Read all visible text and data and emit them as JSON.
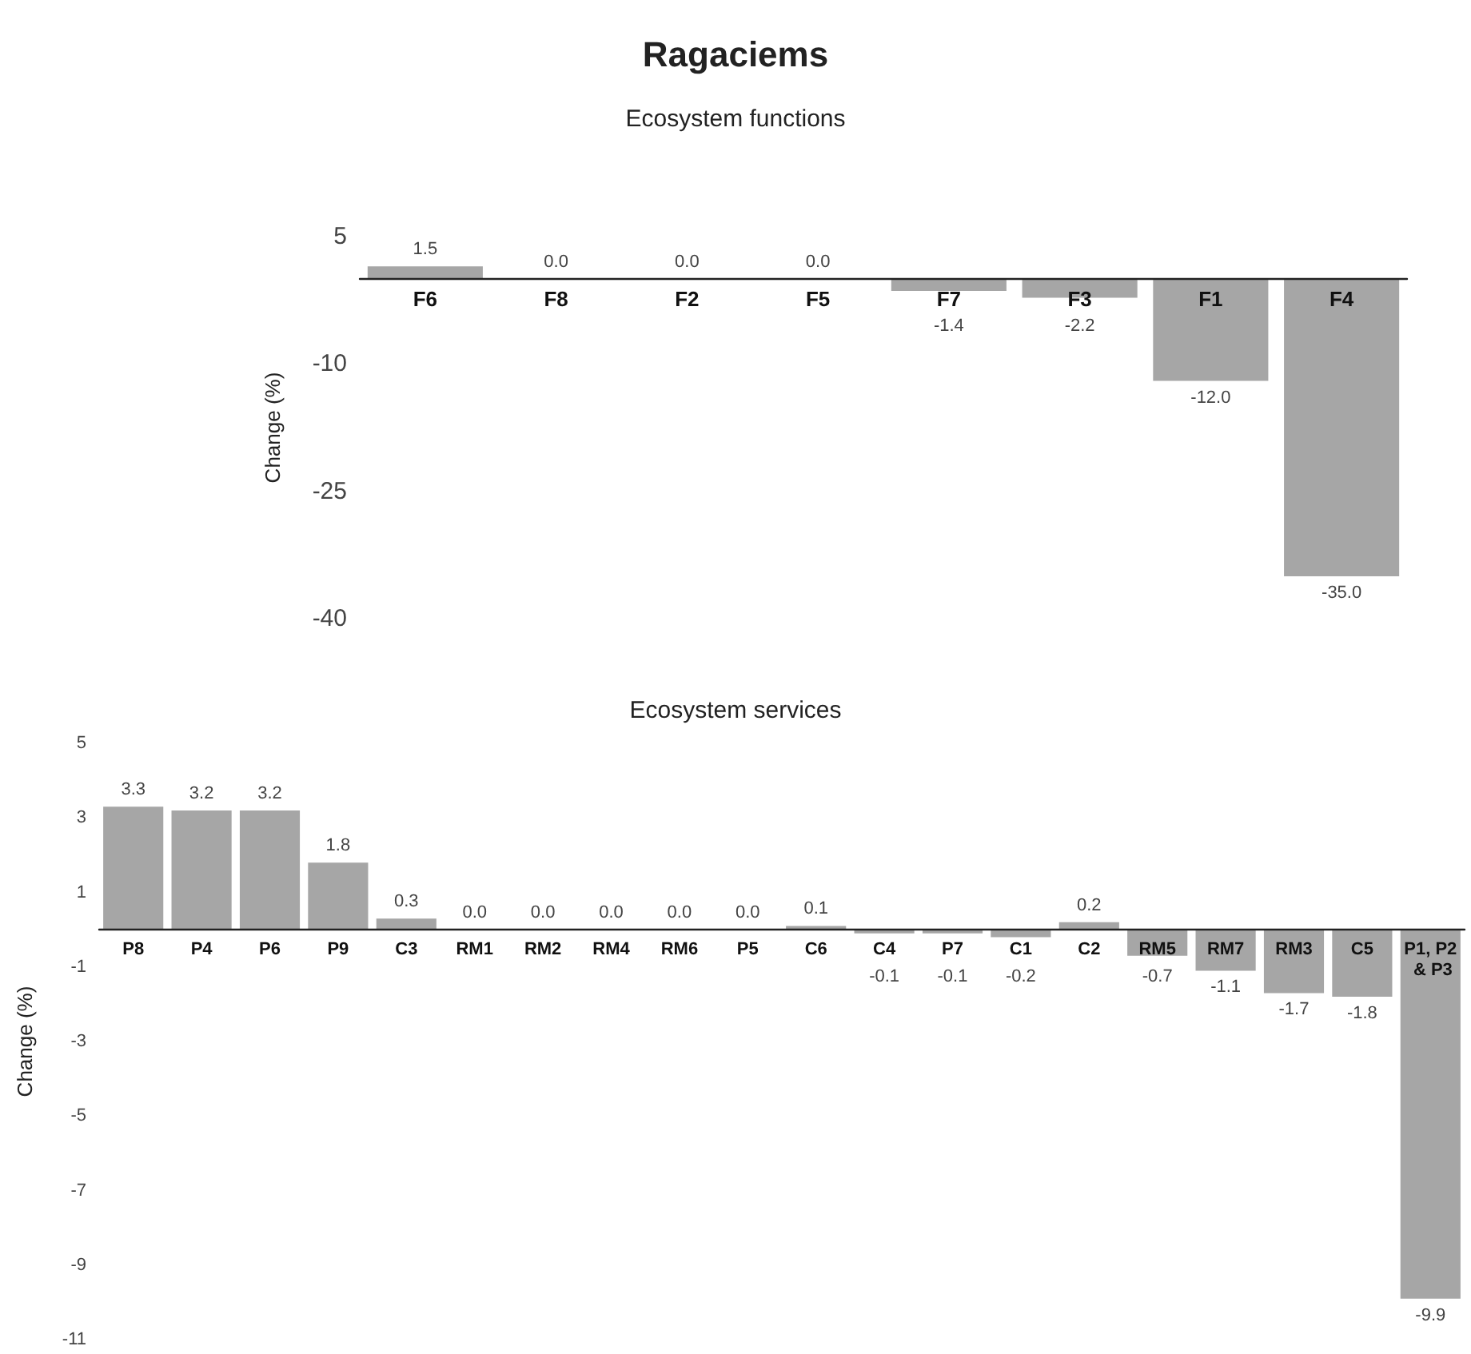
{
  "chart_data": [
    {
      "type": "bar",
      "title": "Ragaciems",
      "subtitle": "Ecosystem functions",
      "ylabel": "Change (%)",
      "categories": [
        "F6",
        "F8",
        "F2",
        "F5",
        "F7",
        "F3",
        "F1",
        "F4"
      ],
      "values": [
        1.5,
        0.0,
        0.0,
        0.0,
        -1.4,
        -2.2,
        -12.0,
        -35.0
      ],
      "color": "#a6a6a6",
      "value_labels": [
        "1.5",
        "0.0",
        "0.0",
        "0.0",
        "-1.4",
        "-2.2",
        "-12.0",
        "-35.0"
      ],
      "ylim": [
        -40,
        5
      ],
      "yticks": [
        -40,
        -25,
        -10,
        5
      ]
    },
    {
      "type": "bar",
      "title": "Ecosystem services",
      "ylabel": "Change (%)",
      "categories": [
        "P8",
        "P4",
        "P6",
        "P9",
        "C3",
        "RM1",
        "RM2",
        "RM4",
        "RM6",
        "P5",
        "C6",
        "C4",
        "P7",
        "C1",
        "C2",
        "RM5",
        "RM7",
        "RM3",
        "C5",
        "P1, P2 & P3"
      ],
      "values": [
        3.3,
        3.2,
        3.2,
        1.8,
        0.3,
        0.0,
        0.0,
        0.0,
        0.0,
        0.0,
        0.1,
        -0.1,
        -0.1,
        -0.2,
        0.2,
        -0.7,
        -1.1,
        -1.7,
        -1.8,
        -9.9
      ],
      "color": "#a6a6a6",
      "value_labels": [
        "3.3",
        "3.2",
        "3.2",
        "1.8",
        "0.3",
        "0.0",
        "0.0",
        "0.0",
        "0.0",
        "0.0",
        "0.1",
        "-0.1",
        "-0.1",
        "-0.2",
        "0.2",
        "-0.7",
        "-1.1",
        "-1.7",
        "-1.8",
        "-9.9"
      ],
      "ylim": [
        -11,
        5
      ],
      "yticks": [
        -11,
        -9,
        -7,
        -5,
        -3,
        -1,
        1,
        3,
        5
      ]
    }
  ]
}
